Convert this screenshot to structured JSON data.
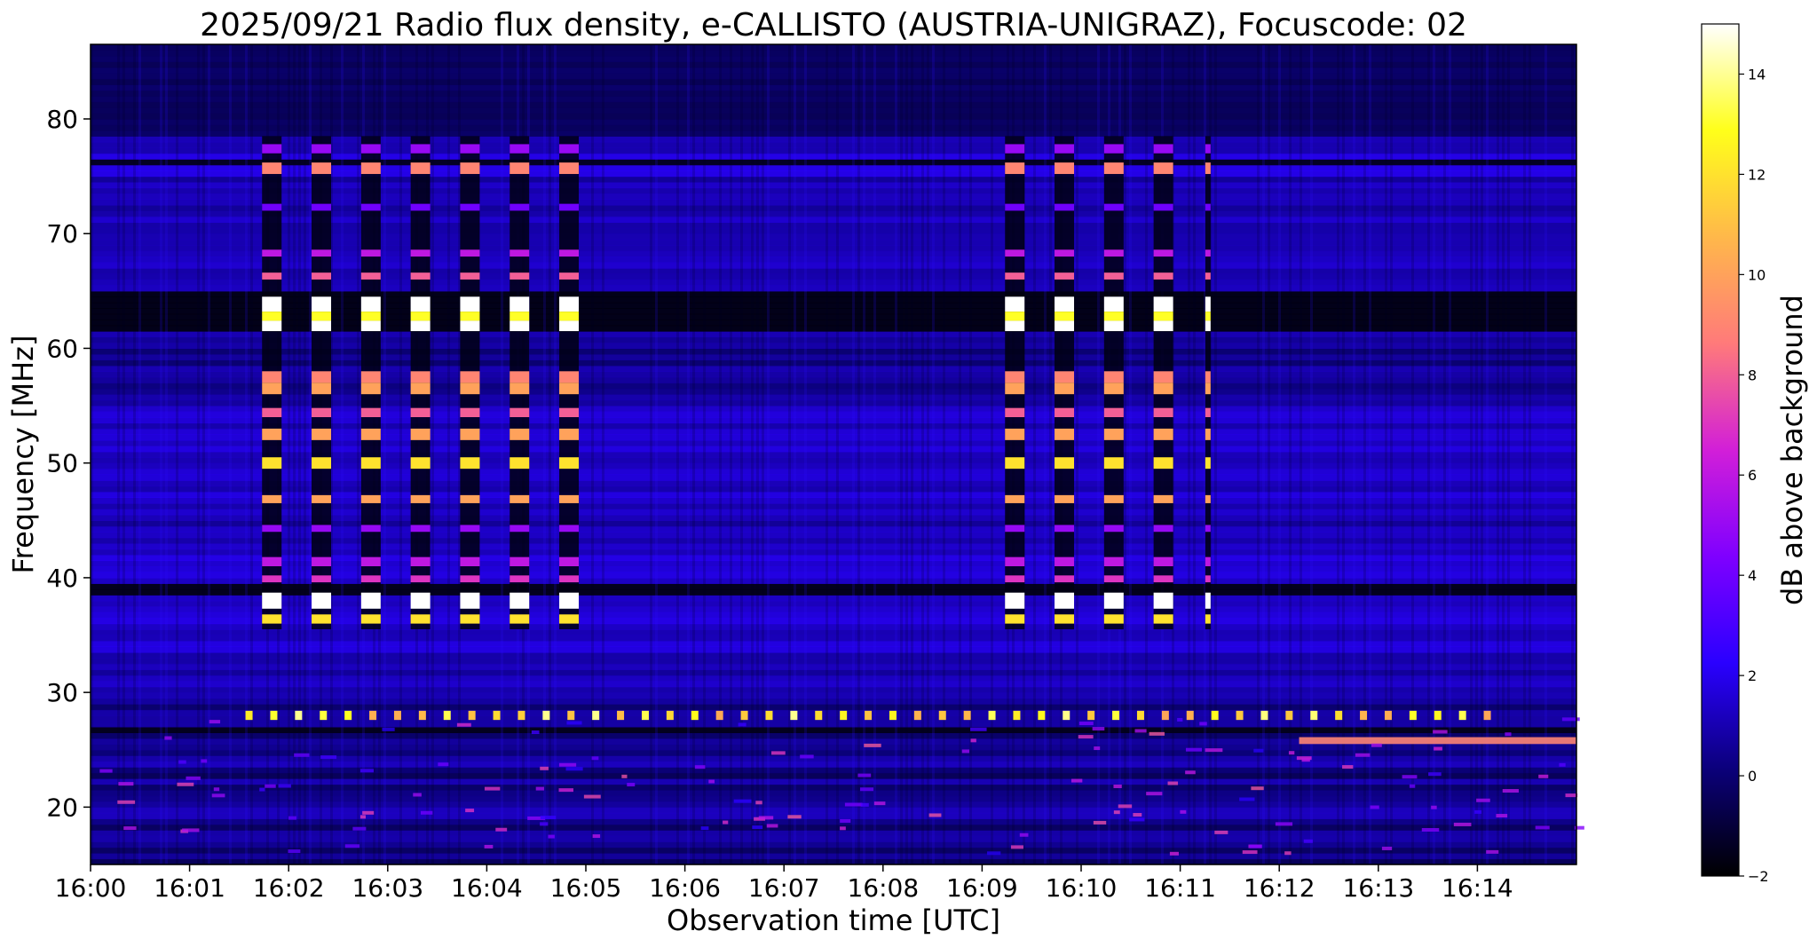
{
  "chart_data": {
    "type": "heatmap",
    "title": "2025/09/21  Radio flux density, e-CALLISTO (AUSTRIA-UNIGRAZ), Focuscode: 02",
    "xlabel": "Observation time [UTC]",
    "ylabel": "Frequency [MHz]",
    "colorbar_label": "dB above background",
    "x_ticks": [
      "16:00",
      "16:01",
      "16:02",
      "16:03",
      "16:04",
      "16:05",
      "16:06",
      "16:07",
      "16:08",
      "16:09",
      "16:10",
      "16:11",
      "16:12",
      "16:13",
      "16:14"
    ],
    "x_range_minutes": [
      0,
      15
    ],
    "y_ticks": [
      20,
      30,
      40,
      50,
      60,
      70,
      80
    ],
    "ylim": [
      15,
      86.5
    ],
    "colorbar_ticks": [
      -2,
      0,
      2,
      4,
      6,
      8,
      10,
      12,
      14
    ],
    "colorbar_range": [
      -2,
      15
    ],
    "colormap": "gnuplot2",
    "colormap_stops": [
      "#000000",
      "#0b007a",
      "#2a00ff",
      "#7f00ff",
      "#d21fd8",
      "#ff7a7a",
      "#ffb84a",
      "#ffff1a",
      "#ffffff"
    ],
    "calibration_bursts": {
      "times_minutes": [
        1.83,
        2.33,
        2.83,
        3.33,
        3.83,
        4.33,
        4.83,
        9.33,
        9.83,
        10.33,
        10.83,
        11.28
      ],
      "bright_frequency_bands_mhz": [
        [
          61.5,
          64.5
        ],
        [
          37.3,
          38.7
        ]
      ],
      "peak_db": 15
    },
    "noted_features": [
      {
        "frequency_mhz": 28,
        "description": "periodic dots across full time range"
      },
      {
        "frequency_mhz": 25.8,
        "description": "interference line after 16:12"
      },
      {
        "frequency_mhz": 76,
        "description": "persistent band"
      }
    ],
    "grid": false
  }
}
